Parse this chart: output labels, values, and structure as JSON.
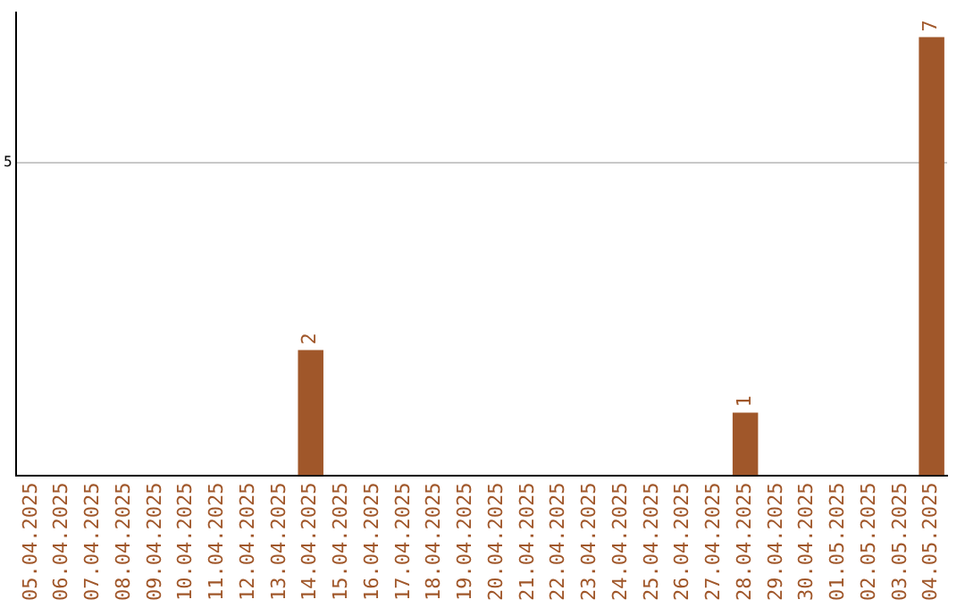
{
  "chart_data": {
    "type": "bar",
    "categories": [
      "05.04.2025",
      "06.04.2025",
      "07.04.2025",
      "08.04.2025",
      "09.04.2025",
      "10.04.2025",
      "11.04.2025",
      "12.04.2025",
      "13.04.2025",
      "14.04.2025",
      "15.04.2025",
      "16.04.2025",
      "17.04.2025",
      "18.04.2025",
      "19.04.2025",
      "20.04.2025",
      "21.04.2025",
      "22.04.2025",
      "23.04.2025",
      "24.04.2025",
      "25.04.2025",
      "26.04.2025",
      "27.04.2025",
      "28.04.2025",
      "29.04.2025",
      "30.04.2025",
      "01.05.2025",
      "02.05.2025",
      "03.05.2025",
      "04.05.2025"
    ],
    "values": [
      0,
      0,
      0,
      0,
      0,
      0,
      0,
      0,
      0,
      2,
      0,
      0,
      0,
      0,
      0,
      0,
      0,
      0,
      0,
      0,
      0,
      0,
      0,
      1,
      0,
      0,
      0,
      0,
      0,
      7
    ],
    "value_labels": [
      null,
      null,
      null,
      null,
      null,
      null,
      null,
      null,
      null,
      "2",
      null,
      null,
      null,
      null,
      null,
      null,
      null,
      null,
      null,
      null,
      null,
      null,
      null,
      "1",
      null,
      null,
      null,
      null,
      null,
      "7"
    ],
    "color": "#a0572a",
    "ylim": [
      0,
      7.4
    ],
    "yticks": [
      5
    ],
    "grid": "y",
    "legend": false
  }
}
